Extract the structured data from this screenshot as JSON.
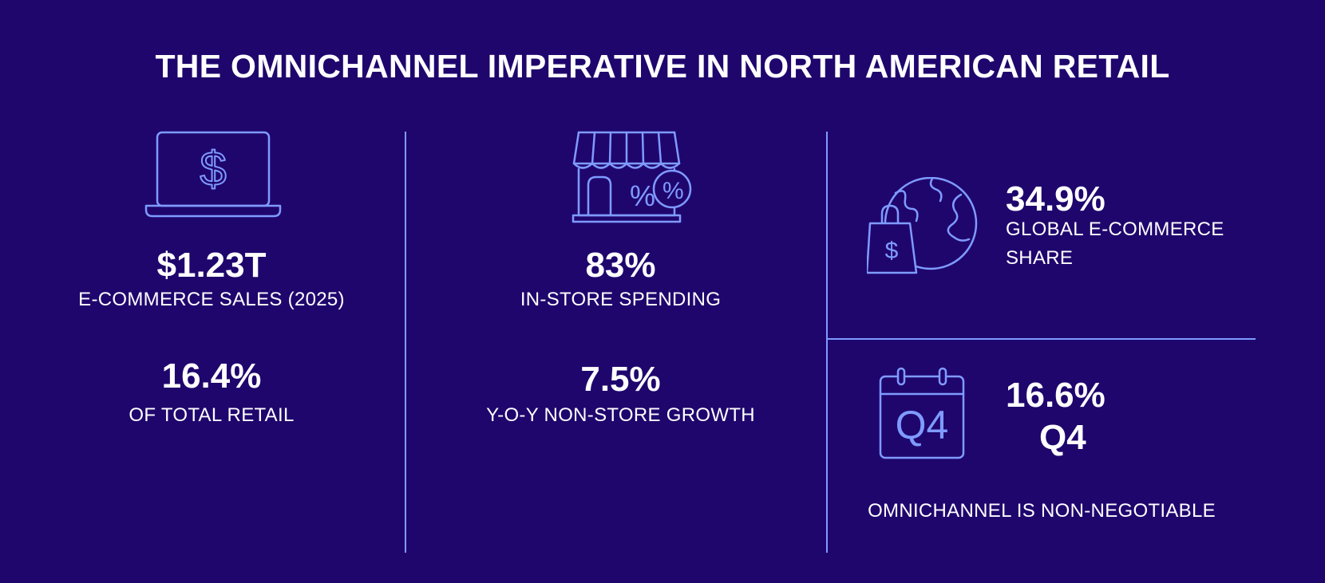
{
  "title": "THE OMNICHANNEL IMPERATIVE IN NORTH AMERICAN RETAIL",
  "colors": {
    "background": "#1f066d",
    "accent": "#7f9bff",
    "text": "#ffffff"
  },
  "left": {
    "icon": "laptop-dollar-icon",
    "stat1": {
      "value": "$1.23T",
      "label": "E-COMMERCE SALES (2025)"
    },
    "stat2": {
      "value": "16.4%",
      "label": "OF TOTAL RETAIL"
    }
  },
  "middle": {
    "icon": "storefront-percent-icon",
    "stat1": {
      "value": "83%",
      "label": "IN-STORE SPENDING"
    },
    "stat2": {
      "value": "7.5%",
      "label": "Y-O-Y NON-STORE GROWTH"
    }
  },
  "right": {
    "top": {
      "icon": "globe-shopping-bag-icon",
      "value": "34.9%",
      "label_line1": "GLOBAL E-COMMERCE",
      "label_line2": "SHARE"
    },
    "bottom": {
      "icon": "calendar-q4-icon",
      "icon_text": "Q4",
      "value": "16.6%",
      "value_line2": "Q4",
      "footer": "OMNICHANNEL IS NON-NEGOTIABLE"
    }
  }
}
